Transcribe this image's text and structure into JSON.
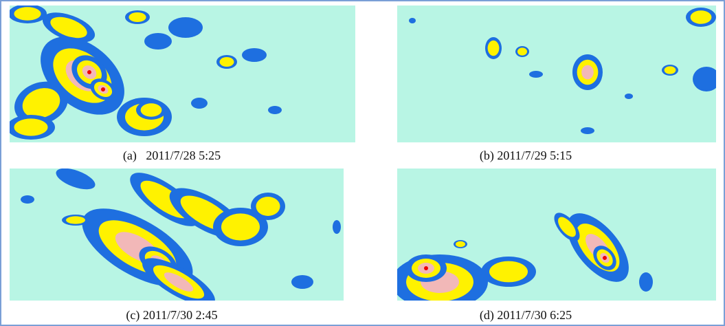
{
  "panels": [
    {
      "caption": "(a)   2011/7/28 5:25"
    },
    {
      "caption": "(b) 2011/7/29 5:15"
    },
    {
      "caption": "(c) 2011/7/30 2:45"
    },
    {
      "caption": "(d) 2011/7/30 6:25"
    }
  ]
}
